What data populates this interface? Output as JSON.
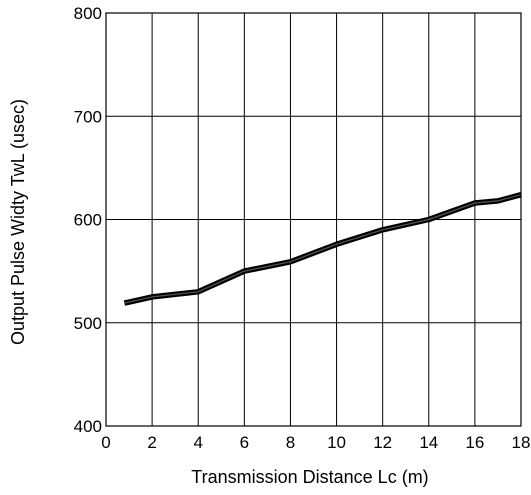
{
  "chart_data": {
    "type": "line",
    "title": "",
    "xlabel": "Transmission Distance Lc (m)",
    "ylabel": "Output Pulse Widty TwL (usec)",
    "xlim": [
      0,
      18
    ],
    "ylim": [
      400,
      800
    ],
    "x_ticks": [
      0,
      2,
      4,
      6,
      8,
      10,
      12,
      14,
      16,
      18
    ],
    "y_ticks": [
      400,
      500,
      600,
      700,
      800
    ],
    "grid": true,
    "series": [
      {
        "color": "#000000",
        "points": [
          [
            0.8,
            519
          ],
          [
            2,
            525
          ],
          [
            4,
            530
          ],
          [
            6,
            550
          ],
          [
            8,
            559
          ],
          [
            10,
            576
          ],
          [
            12,
            590
          ],
          [
            14,
            600
          ],
          [
            16,
            616
          ],
          [
            17,
            618
          ],
          [
            18,
            624
          ]
        ]
      }
    ]
  }
}
